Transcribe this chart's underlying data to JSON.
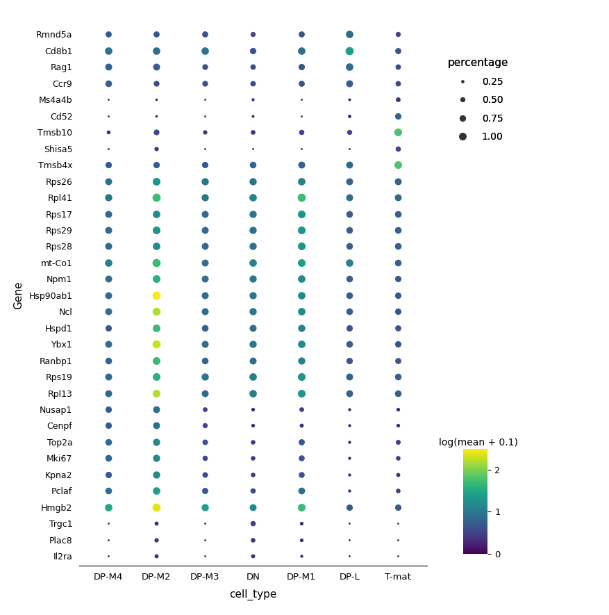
{
  "genes": [
    "Rmnd5a",
    "Cd8b1",
    "Rag1",
    "Ccr9",
    "Ms4a4b",
    "Cd52",
    "Tmsb10",
    "Shisa5",
    "Tmsb4x",
    "Rps26",
    "Rpl41",
    "Rps17",
    "Rps29",
    "Rps28",
    "mt-Co1",
    "Npm1",
    "Hsp90ab1",
    "Ncl",
    "Hspd1",
    "Ybx1",
    "Ranbp1",
    "Rps19",
    "Rpl13",
    "Nusap1",
    "Cenpf",
    "Top2a",
    "Mki67",
    "Kpna2",
    "Pclaf",
    "Hmgb2",
    "Trgc1",
    "Plac8",
    "Il2ra"
  ],
  "cell_types": [
    "DP-M4",
    "DP-M2",
    "DP-M3",
    "DN",
    "DP-M1",
    "DP-L",
    "T-mat"
  ],
  "percentage": {
    "Rmnd5a": [
      0.5,
      0.5,
      0.5,
      0.35,
      0.5,
      0.75,
      0.35
    ],
    "Cd8b1": [
      0.75,
      0.75,
      0.75,
      0.55,
      0.75,
      0.9,
      0.5
    ],
    "Rag1": [
      0.65,
      0.65,
      0.45,
      0.4,
      0.55,
      0.75,
      0.4
    ],
    "Ccr9": [
      0.6,
      0.45,
      0.45,
      0.4,
      0.5,
      0.65,
      0.4
    ],
    "Ms4a4b": [
      0.05,
      0.08,
      0.05,
      0.12,
      0.05,
      0.1,
      0.3
    ],
    "Cd52": [
      0.05,
      0.08,
      0.05,
      0.1,
      0.05,
      0.15,
      0.55
    ],
    "Tmsb10": [
      0.2,
      0.45,
      0.25,
      0.3,
      0.38,
      0.35,
      0.8
    ],
    "Shisa5": [
      0.05,
      0.25,
      0.05,
      0.05,
      0.05,
      0.05,
      0.38
    ],
    "Tmsb4x": [
      0.55,
      0.55,
      0.55,
      0.6,
      0.65,
      0.65,
      0.8
    ],
    "Rps26": [
      0.65,
      0.8,
      0.7,
      0.7,
      0.75,
      0.65,
      0.65
    ],
    "Rpl41": [
      0.7,
      0.9,
      0.7,
      0.75,
      0.9,
      0.65,
      0.65
    ],
    "Rps17": [
      0.65,
      0.75,
      0.65,
      0.7,
      0.8,
      0.6,
      0.6
    ],
    "Rps29": [
      0.65,
      0.8,
      0.65,
      0.7,
      0.8,
      0.6,
      0.6
    ],
    "Rps28": [
      0.65,
      0.75,
      0.65,
      0.7,
      0.8,
      0.6,
      0.6
    ],
    "mt-Co1": [
      0.75,
      0.9,
      0.65,
      0.75,
      0.8,
      0.75,
      0.6
    ],
    "Npm1": [
      0.65,
      0.8,
      0.65,
      0.7,
      0.75,
      0.6,
      0.55
    ],
    "Hsp90ab1": [
      0.65,
      0.9,
      0.65,
      0.7,
      0.75,
      0.6,
      0.55
    ],
    "Ncl": [
      0.65,
      0.85,
      0.65,
      0.7,
      0.75,
      0.6,
      0.55
    ],
    "Hspd1": [
      0.55,
      0.8,
      0.6,
      0.65,
      0.7,
      0.55,
      0.5
    ],
    "Ybx1": [
      0.65,
      0.9,
      0.65,
      0.7,
      0.75,
      0.6,
      0.55
    ],
    "Ranbp1": [
      0.6,
      0.8,
      0.6,
      0.65,
      0.7,
      0.55,
      0.5
    ],
    "Rps19": [
      0.65,
      0.8,
      0.7,
      0.75,
      0.8,
      0.65,
      0.6
    ],
    "Rpl13": [
      0.65,
      0.8,
      0.65,
      0.75,
      0.8,
      0.65,
      0.6
    ],
    "Nusap1": [
      0.55,
      0.65,
      0.3,
      0.18,
      0.3,
      0.12,
      0.18
    ],
    "Cenpf": [
      0.55,
      0.65,
      0.35,
      0.18,
      0.22,
      0.12,
      0.18
    ],
    "Top2a": [
      0.6,
      0.7,
      0.42,
      0.28,
      0.52,
      0.12,
      0.32
    ],
    "Mki67": [
      0.6,
      0.7,
      0.38,
      0.28,
      0.48,
      0.12,
      0.28
    ],
    "Kpna2": [
      0.55,
      0.7,
      0.42,
      0.28,
      0.48,
      0.12,
      0.22
    ],
    "Pclaf": [
      0.6,
      0.75,
      0.52,
      0.38,
      0.62,
      0.12,
      0.28
    ],
    "Hmgb2": [
      0.75,
      0.9,
      0.7,
      0.65,
      0.8,
      0.55,
      0.55
    ],
    "Trgc1": [
      0.05,
      0.22,
      0.05,
      0.38,
      0.18,
      0.05,
      0.05
    ],
    "Plac8": [
      0.05,
      0.25,
      0.05,
      0.28,
      0.18,
      0.05,
      0.05
    ],
    "Il2ra": [
      0.05,
      0.22,
      0.05,
      0.22,
      0.12,
      0.05,
      0.05
    ]
  },
  "log_mean": {
    "Rmnd5a": [
      0.7,
      0.65,
      0.65,
      0.5,
      0.65,
      0.9,
      0.5
    ],
    "Cd8b1": [
      0.95,
      0.9,
      0.95,
      0.65,
      0.9,
      1.4,
      0.65
    ],
    "Rag1": [
      0.8,
      0.75,
      0.6,
      0.55,
      0.7,
      0.85,
      0.55
    ],
    "Ccr9": [
      0.75,
      0.6,
      0.6,
      0.55,
      0.65,
      0.75,
      0.55
    ],
    "Ms4a4b": [
      0.1,
      0.1,
      0.1,
      0.2,
      0.1,
      0.15,
      0.35
    ],
    "Cd52": [
      0.1,
      0.1,
      0.1,
      0.15,
      0.1,
      0.2,
      0.8
    ],
    "Tmsb10": [
      0.3,
      0.55,
      0.35,
      0.4,
      0.5,
      0.5,
      1.8
    ],
    "Shisa5": [
      0.1,
      0.35,
      0.1,
      0.1,
      0.1,
      0.1,
      0.5
    ],
    "Tmsb4x": [
      0.7,
      0.7,
      0.7,
      0.8,
      0.8,
      0.85,
      1.8
    ],
    "Rps26": [
      0.9,
      1.3,
      1.0,
      0.95,
      1.1,
      0.8,
      0.8
    ],
    "Rpl41": [
      1.0,
      1.7,
      1.0,
      1.1,
      1.7,
      0.85,
      0.85
    ],
    "Rps17": [
      0.85,
      1.2,
      0.85,
      0.95,
      1.3,
      0.75,
      0.75
    ],
    "Rps29": [
      0.85,
      1.3,
      0.85,
      0.95,
      1.3,
      0.75,
      0.75
    ],
    "Rps28": [
      0.85,
      1.2,
      0.85,
      0.95,
      1.3,
      0.75,
      0.75
    ],
    "mt-Co1": [
      1.1,
      1.7,
      0.9,
      1.1,
      1.4,
      1.1,
      0.75
    ],
    "Npm1": [
      0.9,
      1.6,
      0.9,
      1.0,
      1.2,
      0.75,
      0.7
    ],
    "Hsp90ab1": [
      0.9,
      2.5,
      0.9,
      1.0,
      1.2,
      0.75,
      0.7
    ],
    "Ncl": [
      0.9,
      2.2,
      0.9,
      1.0,
      1.2,
      0.75,
      0.7
    ],
    "Hspd1": [
      0.7,
      1.7,
      0.8,
      0.9,
      1.1,
      0.65,
      0.65
    ],
    "Ybx1": [
      0.9,
      2.3,
      0.9,
      1.0,
      1.2,
      0.75,
      0.7
    ],
    "Ranbp1": [
      0.8,
      1.7,
      0.8,
      0.9,
      1.1,
      0.65,
      0.65
    ],
    "Rps19": [
      0.85,
      1.6,
      0.95,
      1.05,
      1.3,
      0.8,
      0.75
    ],
    "Rpl13": [
      0.85,
      2.2,
      0.85,
      1.05,
      1.3,
      0.8,
      0.75
    ],
    "Nusap1": [
      0.7,
      0.9,
      0.45,
      0.25,
      0.45,
      0.18,
      0.25
    ],
    "Cenpf": [
      0.7,
      0.9,
      0.5,
      0.25,
      0.3,
      0.18,
      0.25
    ],
    "Top2a": [
      0.85,
      1.2,
      0.65,
      0.4,
      0.7,
      0.18,
      0.45
    ],
    "Mki67": [
      0.8,
      1.2,
      0.55,
      0.4,
      0.65,
      0.18,
      0.4
    ],
    "Kpna2": [
      0.7,
      1.2,
      0.6,
      0.4,
      0.65,
      0.18,
      0.3
    ],
    "Pclaf": [
      0.85,
      1.4,
      0.7,
      0.55,
      0.9,
      0.18,
      0.4
    ],
    "Hmgb2": [
      1.5,
      2.4,
      1.4,
      1.2,
      1.7,
      0.7,
      0.7
    ],
    "Trgc1": [
      0.1,
      0.3,
      0.1,
      0.5,
      0.25,
      0.1,
      0.1
    ],
    "Plac8": [
      0.1,
      0.35,
      0.1,
      0.35,
      0.25,
      0.1,
      0.1
    ],
    "Il2ra": [
      0.1,
      0.3,
      0.1,
      0.3,
      0.18,
      0.08,
      0.08
    ]
  },
  "xlabel": "cell_type",
  "ylabel": "Gene",
  "colorbar_label": "log(mean + 0.1)",
  "size_legend_label": "percentage",
  "size_legend_values": [
    0.25,
    0.5,
    0.75,
    1.0
  ],
  "size_legend_labels": [
    "0.25",
    "0.50",
    "0.75",
    "1.00"
  ],
  "colormap": "viridis",
  "vmin": 0.0,
  "vmax": 2.5,
  "background_color": "#ffffff",
  "dot_scale": 80
}
